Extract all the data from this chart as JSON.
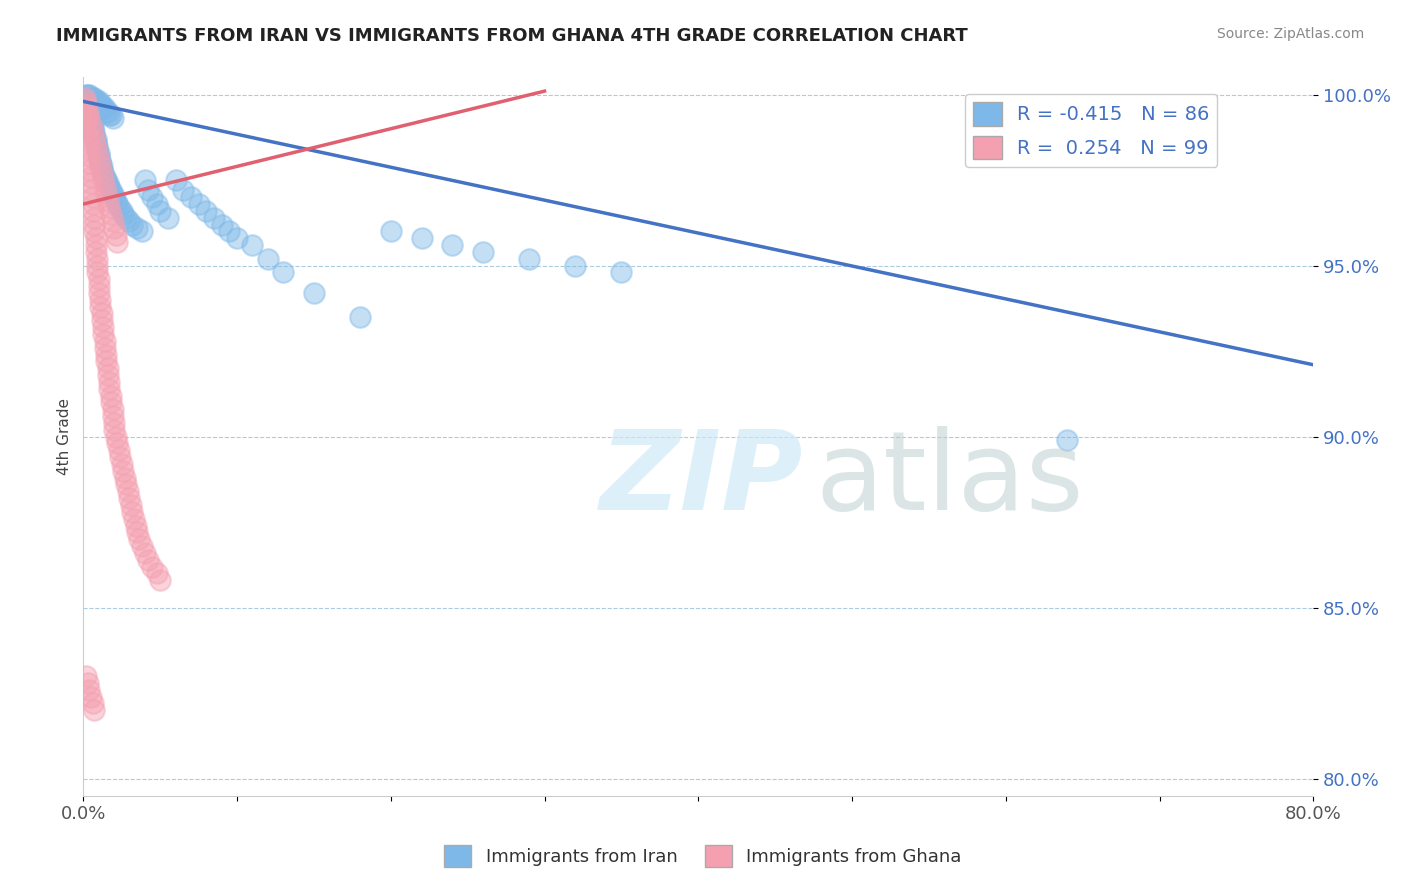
{
  "title": "IMMIGRANTS FROM IRAN VS IMMIGRANTS FROM GHANA 4TH GRADE CORRELATION CHART",
  "source": "Source: ZipAtlas.com",
  "ylabel": "4th Grade",
  "xlim": [
    0.0,
    0.8
  ],
  "ylim": [
    0.795,
    1.005
  ],
  "xticks": [
    0.0,
    0.1,
    0.2,
    0.3,
    0.4,
    0.5,
    0.6,
    0.7,
    0.8
  ],
  "xticklabels": [
    "0.0%",
    "",
    "",
    "",
    "",
    "",
    "",
    "",
    "80.0%"
  ],
  "yticks": [
    0.8,
    0.85,
    0.9,
    0.95,
    1.0
  ],
  "yticklabels": [
    "80.0%",
    "85.0%",
    "90.0%",
    "95.0%",
    "100.0%"
  ],
  "iran_R": -0.415,
  "iran_N": 86,
  "ghana_R": 0.254,
  "ghana_N": 99,
  "iran_color": "#7EB8E8",
  "ghana_color": "#F4A0B0",
  "iran_line_color": "#4472C4",
  "ghana_line_color": "#E06070",
  "legend_label_iran": "Immigrants from Iran",
  "legend_label_ghana": "Immigrants from Ghana",
  "iran_line_x0": 0.0,
  "iran_line_y0": 0.998,
  "iran_line_x1": 0.8,
  "iran_line_y1": 0.921,
  "ghana_line_x0": 0.0,
  "ghana_line_y0": 0.968,
  "ghana_line_x1": 0.3,
  "ghana_line_y1": 1.001,
  "iran_scatter_x": [
    0.001,
    0.002,
    0.003,
    0.003,
    0.004,
    0.004,
    0.005,
    0.005,
    0.006,
    0.006,
    0.007,
    0.007,
    0.008,
    0.008,
    0.009,
    0.009,
    0.01,
    0.01,
    0.011,
    0.011,
    0.012,
    0.012,
    0.013,
    0.014,
    0.015,
    0.016,
    0.017,
    0.018,
    0.019,
    0.02,
    0.021,
    0.022,
    0.023,
    0.025,
    0.026,
    0.028,
    0.03,
    0.032,
    0.035,
    0.038,
    0.04,
    0.042,
    0.045,
    0.048,
    0.05,
    0.055,
    0.06,
    0.065,
    0.07,
    0.075,
    0.08,
    0.085,
    0.09,
    0.095,
    0.1,
    0.11,
    0.12,
    0.13,
    0.15,
    0.18,
    0.2,
    0.22,
    0.24,
    0.26,
    0.29,
    0.32,
    0.35,
    0.002,
    0.003,
    0.004,
    0.005,
    0.006,
    0.007,
    0.008,
    0.009,
    0.01,
    0.011,
    0.012,
    0.013,
    0.014,
    0.015,
    0.016,
    0.017,
    0.018,
    0.019,
    0.64
  ],
  "iran_scatter_y": [
    0.999,
    0.998,
    0.997,
    0.996,
    0.995,
    0.994,
    0.993,
    0.992,
    0.991,
    0.99,
    0.989,
    0.988,
    0.987,
    0.986,
    0.985,
    0.984,
    0.983,
    0.982,
    0.981,
    0.98,
    0.979,
    0.978,
    0.977,
    0.976,
    0.975,
    0.974,
    0.973,
    0.972,
    0.971,
    0.97,
    0.969,
    0.968,
    0.967,
    0.966,
    0.965,
    0.964,
    0.963,
    0.962,
    0.961,
    0.96,
    0.975,
    0.972,
    0.97,
    0.968,
    0.966,
    0.964,
    0.975,
    0.972,
    0.97,
    0.968,
    0.966,
    0.964,
    0.962,
    0.96,
    0.958,
    0.956,
    0.952,
    0.948,
    0.942,
    0.935,
    0.96,
    0.958,
    0.956,
    0.954,
    0.952,
    0.95,
    0.948,
    1.0,
    1.0,
    1.0,
    0.999,
    0.999,
    0.999,
    0.998,
    0.998,
    0.998,
    0.997,
    0.997,
    0.996,
    0.996,
    0.995,
    0.995,
    0.994,
    0.994,
    0.993,
    0.899
  ],
  "ghana_scatter_x": [
    0.001,
    0.001,
    0.002,
    0.002,
    0.002,
    0.003,
    0.003,
    0.003,
    0.004,
    0.004,
    0.004,
    0.005,
    0.005,
    0.005,
    0.006,
    0.006,
    0.006,
    0.007,
    0.007,
    0.007,
    0.008,
    0.008,
    0.008,
    0.009,
    0.009,
    0.009,
    0.01,
    0.01,
    0.01,
    0.011,
    0.011,
    0.012,
    0.012,
    0.013,
    0.013,
    0.014,
    0.014,
    0.015,
    0.015,
    0.016,
    0.016,
    0.017,
    0.017,
    0.018,
    0.018,
    0.019,
    0.019,
    0.02,
    0.02,
    0.021,
    0.022,
    0.023,
    0.024,
    0.025,
    0.026,
    0.027,
    0.028,
    0.029,
    0.03,
    0.031,
    0.032,
    0.033,
    0.034,
    0.035,
    0.036,
    0.038,
    0.04,
    0.042,
    0.045,
    0.048,
    0.05,
    0.001,
    0.002,
    0.003,
    0.004,
    0.005,
    0.006,
    0.007,
    0.008,
    0.009,
    0.01,
    0.011,
    0.012,
    0.013,
    0.014,
    0.015,
    0.016,
    0.017,
    0.018,
    0.019,
    0.02,
    0.021,
    0.022,
    0.002,
    0.003,
    0.004,
    0.005,
    0.006,
    0.007
  ],
  "ghana_scatter_y": [
    0.998,
    0.996,
    0.994,
    0.992,
    0.99,
    0.988,
    0.986,
    0.984,
    0.982,
    0.98,
    0.978,
    0.976,
    0.974,
    0.972,
    0.97,
    0.968,
    0.966,
    0.964,
    0.962,
    0.96,
    0.958,
    0.956,
    0.954,
    0.952,
    0.95,
    0.948,
    0.946,
    0.944,
    0.942,
    0.94,
    0.938,
    0.936,
    0.934,
    0.932,
    0.93,
    0.928,
    0.926,
    0.924,
    0.922,
    0.92,
    0.918,
    0.916,
    0.914,
    0.912,
    0.91,
    0.908,
    0.906,
    0.904,
    0.902,
    0.9,
    0.898,
    0.896,
    0.894,
    0.892,
    0.89,
    0.888,
    0.886,
    0.884,
    0.882,
    0.88,
    0.878,
    0.876,
    0.874,
    0.872,
    0.87,
    0.868,
    0.866,
    0.864,
    0.862,
    0.86,
    0.858,
    0.999,
    0.997,
    0.995,
    0.993,
    0.991,
    0.989,
    0.987,
    0.985,
    0.983,
    0.981,
    0.979,
    0.977,
    0.975,
    0.973,
    0.971,
    0.969,
    0.967,
    0.965,
    0.963,
    0.961,
    0.959,
    0.957,
    0.83,
    0.828,
    0.826,
    0.824,
    0.822,
    0.82
  ]
}
